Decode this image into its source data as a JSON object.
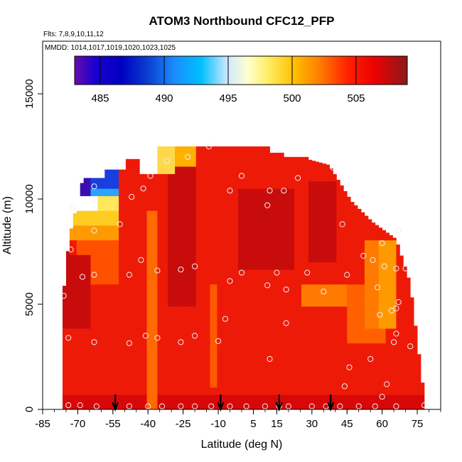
{
  "chart_data": {
    "type": "heatmap",
    "title": "ATOM3 Northbound CFC12_PFP",
    "subtitle_flights": "Flts: 7,8,9,10,11,12",
    "subtitle_dates": "MMDD: 1014,1017,1019,1020,1023,1025",
    "xlabel": "Latitude (deg N)",
    "ylabel": "Altitude (m)",
    "xlim": [
      -85,
      85
    ],
    "ylim": [
      0,
      17500
    ],
    "x_ticks": [
      -85,
      -70,
      -55,
      -40,
      -25,
      -10,
      5,
      15,
      30,
      45,
      60,
      75
    ],
    "y_ticks": [
      0,
      5000,
      10000,
      15000
    ],
    "colorbar": {
      "range": [
        483,
        509
      ],
      "ticks": [
        485,
        490,
        495,
        500,
        505
      ],
      "colors": [
        "#6a0dad",
        "#0000c8",
        "#0a4fd8",
        "#1a9cff",
        "#00bfff",
        "#ffffff",
        "#ffff99",
        "#ffd21a",
        "#ff9900",
        "#ff3300",
        "#ee0000",
        "#8b1a1a"
      ]
    },
    "arrow_latitudes": [
      -54,
      -9,
      16,
      38
    ],
    "sample_points": [
      {
        "lat": -74,
        "alt": 200
      },
      {
        "lat": -69,
        "alt": 200
      },
      {
        "lat": -62,
        "alt": 150
      },
      {
        "lat": -48,
        "alt": 150
      },
      {
        "lat": -40,
        "alt": 150
      },
      {
        "lat": -34,
        "alt": 150
      },
      {
        "lat": -26,
        "alt": 150
      },
      {
        "lat": -20,
        "alt": 150
      },
      {
        "lat": -13,
        "alt": 150
      },
      {
        "lat": -5,
        "alt": 150
      },
      {
        "lat": 2,
        "alt": 150
      },
      {
        "lat": 10,
        "alt": 150
      },
      {
        "lat": 16,
        "alt": 150
      },
      {
        "lat": 20,
        "alt": 150
      },
      {
        "lat": 30,
        "alt": 150
      },
      {
        "lat": 36,
        "alt": 150
      },
      {
        "lat": 42,
        "alt": 150
      },
      {
        "lat": 50,
        "alt": 150
      },
      {
        "lat": 57,
        "alt": 150
      },
      {
        "lat": 66,
        "alt": 150
      },
      {
        "lat": 78,
        "alt": 200
      },
      {
        "lat": -74,
        "alt": 3400
      },
      {
        "lat": -63,
        "alt": 3200
      },
      {
        "lat": -48,
        "alt": 3150
      },
      {
        "lat": -41,
        "alt": 3500
      },
      {
        "lat": -36,
        "alt": 3400
      },
      {
        "lat": -26,
        "alt": 3200
      },
      {
        "lat": -20,
        "alt": 3500
      },
      {
        "lat": -10,
        "alt": 3250
      },
      {
        "lat": -7,
        "alt": 4300
      },
      {
        "lat": 12,
        "alt": 2400
      },
      {
        "lat": 19,
        "alt": 4100
      },
      {
        "lat": 46,
        "alt": 2000
      },
      {
        "lat": 44,
        "alt": 1100
      },
      {
        "lat": 55,
        "alt": 2400
      },
      {
        "lat": 62,
        "alt": 1200
      },
      {
        "lat": 60,
        "alt": 600
      },
      {
        "lat": 65,
        "alt": 3200
      },
      {
        "lat": 66,
        "alt": 3600
      },
      {
        "lat": 64,
        "alt": 4700
      },
      {
        "lat": 66,
        "alt": 4800
      },
      {
        "lat": 72,
        "alt": 3000
      },
      {
        "lat": 59,
        "alt": 4500
      },
      {
        "lat": 67,
        "alt": 5100
      },
      {
        "lat": -76,
        "alt": 5400
      },
      {
        "lat": -68,
        "alt": 6300
      },
      {
        "lat": -63,
        "alt": 6400
      },
      {
        "lat": -48,
        "alt": 6400
      },
      {
        "lat": -43,
        "alt": 7100
      },
      {
        "lat": -36,
        "alt": 6600
      },
      {
        "lat": -26,
        "alt": 6650
      },
      {
        "lat": -20,
        "alt": 6800
      },
      {
        "lat": -5,
        "alt": 6100
      },
      {
        "lat": 0,
        "alt": 6500
      },
      {
        "lat": 11,
        "alt": 5900
      },
      {
        "lat": 15,
        "alt": 6500
      },
      {
        "lat": 19,
        "alt": 5700
      },
      {
        "lat": 28,
        "alt": 6500
      },
      {
        "lat": 35,
        "alt": 5600
      },
      {
        "lat": 45,
        "alt": 6400
      },
      {
        "lat": 52,
        "alt": 7300
      },
      {
        "lat": 58,
        "alt": 5800
      },
      {
        "lat": 61,
        "alt": 6800
      },
      {
        "lat": 66,
        "alt": 6700
      },
      {
        "lat": 70,
        "alt": 6700
      },
      {
        "lat": 56,
        "alt": 7100
      },
      {
        "lat": 60,
        "alt": 7900
      },
      {
        "lat": -73,
        "alt": 7600
      },
      {
        "lat": -72,
        "alt": 9600
      },
      {
        "lat": -63,
        "alt": 8500
      },
      {
        "lat": -52,
        "alt": 8800
      },
      {
        "lat": -47,
        "alt": 10100
      },
      {
        "lat": -42,
        "alt": 10500
      },
      {
        "lat": -39,
        "alt": 11100
      },
      {
        "lat": -32,
        "alt": 11800
      },
      {
        "lat": -23,
        "alt": 12000
      },
      {
        "lat": -14,
        "alt": 12500
      },
      {
        "lat": -5,
        "alt": 10400
      },
      {
        "lat": 0,
        "alt": 11100
      },
      {
        "lat": 11,
        "alt": 9700
      },
      {
        "lat": 12,
        "alt": 10400
      },
      {
        "lat": 18,
        "alt": 10400
      },
      {
        "lat": 24,
        "alt": 11000
      },
      {
        "lat": 39,
        "alt": 11500
      },
      {
        "lat": 43,
        "alt": 8800
      },
      {
        "lat": -63,
        "alt": 10600
      },
      {
        "lat": 67,
        "alt": 8500
      }
    ]
  }
}
